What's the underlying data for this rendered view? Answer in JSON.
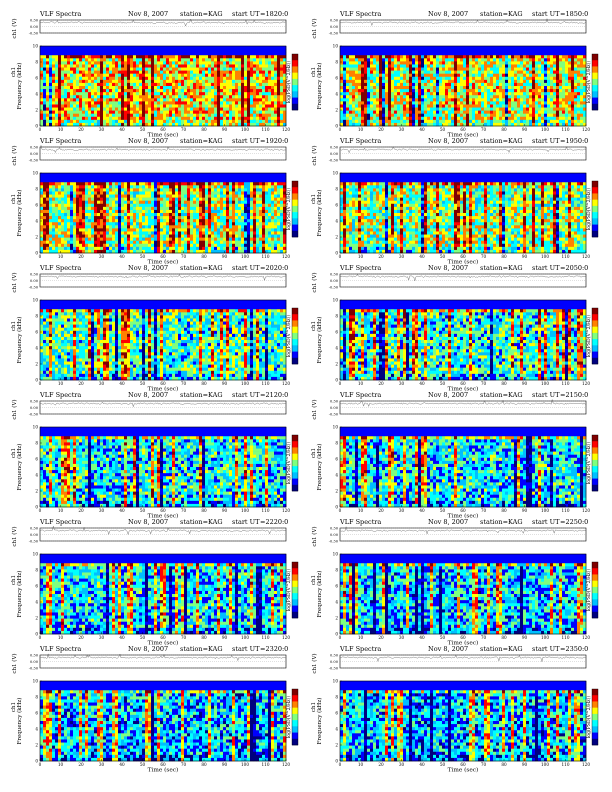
{
  "page": {
    "columns": 2
  },
  "colors": {
    "trace": "#555555"
  },
  "colormap": [
    "#00007f",
    "#0000ff",
    "#00bfff",
    "#00ffff",
    "#7fff7f",
    "#ffff00",
    "#ff8000",
    "#ff0000",
    "#7f0000"
  ],
  "labels": {
    "header_title": "VLF Spectra",
    "header_date": "Nov 8, 2007",
    "header_station": "station=KAG",
    "header_start": "start UT",
    "top_ylabel": "ch1 (V)",
    "spec_ylabel_ch": "ch1",
    "spec_ylabel": "Frequency (kHz)",
    "cbar_label": "log(PSD(V^2/Hz))",
    "xlabel": "Time (sec)",
    "top_ticks": [
      "0.30",
      "0.00",
      "-0.30"
    ],
    "freq_ticks": [
      "0",
      "2",
      "4",
      "6",
      "8",
      "10"
    ],
    "time_ticks": [
      "0",
      "10",
      "20",
      "30",
      "40",
      "50",
      "60",
      "70",
      "80",
      "90",
      "100",
      "110",
      "120"
    ]
  },
  "chart_data": [
    {
      "type": "heatmap",
      "start_ut": "=1820:0",
      "intensity": 0.62,
      "seed": 11,
      "xlim": [
        0,
        120
      ],
      "ylim": [
        0,
        10
      ],
      "top_ylim": [
        -0.3,
        0.3
      ]
    },
    {
      "type": "heatmap",
      "start_ut": "=1850:0",
      "intensity": 0.58,
      "seed": 23,
      "xlim": [
        0,
        120
      ],
      "ylim": [
        0,
        10
      ],
      "top_ylim": [
        -0.3,
        0.3
      ]
    },
    {
      "type": "heatmap",
      "start_ut": "=1920:0",
      "intensity": 0.52,
      "seed": 37,
      "xlim": [
        0,
        120
      ],
      "ylim": [
        0,
        10
      ],
      "top_ylim": [
        -0.3,
        0.3
      ]
    },
    {
      "type": "heatmap",
      "start_ut": "=1950:0",
      "intensity": 0.5,
      "seed": 41,
      "xlim": [
        0,
        120
      ],
      "ylim": [
        0,
        10
      ],
      "top_ylim": [
        -0.3,
        0.3
      ]
    },
    {
      "type": "heatmap",
      "start_ut": "=2020:0",
      "intensity": 0.42,
      "seed": 53,
      "xlim": [
        0,
        120
      ],
      "ylim": [
        0,
        10
      ],
      "top_ylim": [
        -0.3,
        0.3
      ]
    },
    {
      "type": "heatmap",
      "start_ut": "=2050:0",
      "intensity": 0.4,
      "seed": 67,
      "xlim": [
        0,
        120
      ],
      "ylim": [
        0,
        10
      ],
      "top_ylim": [
        -0.3,
        0.3
      ]
    },
    {
      "type": "heatmap",
      "start_ut": "=2120:0",
      "intensity": 0.36,
      "seed": 71,
      "xlim": [
        0,
        120
      ],
      "ylim": [
        0,
        10
      ],
      "top_ylim": [
        -0.3,
        0.3
      ]
    },
    {
      "type": "heatmap",
      "start_ut": "=2150:0",
      "intensity": 0.36,
      "seed": 83,
      "xlim": [
        0,
        120
      ],
      "ylim": [
        0,
        10
      ],
      "top_ylim": [
        -0.3,
        0.3
      ]
    },
    {
      "type": "heatmap",
      "start_ut": "=2220:0",
      "intensity": 0.34,
      "seed": 97,
      "xlim": [
        0,
        120
      ],
      "ylim": [
        0,
        10
      ],
      "top_ylim": [
        -0.3,
        0.3
      ]
    },
    {
      "type": "heatmap",
      "start_ut": "=2250:0",
      "intensity": 0.33,
      "seed": 101,
      "xlim": [
        0,
        120
      ],
      "ylim": [
        0,
        10
      ],
      "top_ylim": [
        -0.3,
        0.3
      ]
    },
    {
      "type": "heatmap",
      "start_ut": "=2320:0",
      "intensity": 0.3,
      "seed": 113,
      "xlim": [
        0,
        120
      ],
      "ylim": [
        0,
        10
      ],
      "top_ylim": [
        -0.3,
        0.3
      ]
    },
    {
      "type": "heatmap",
      "start_ut": "=2350:0",
      "intensity": 0.3,
      "seed": 127,
      "xlim": [
        0,
        120
      ],
      "ylim": [
        0,
        10
      ],
      "top_ylim": [
        -0.3,
        0.3
      ]
    }
  ]
}
